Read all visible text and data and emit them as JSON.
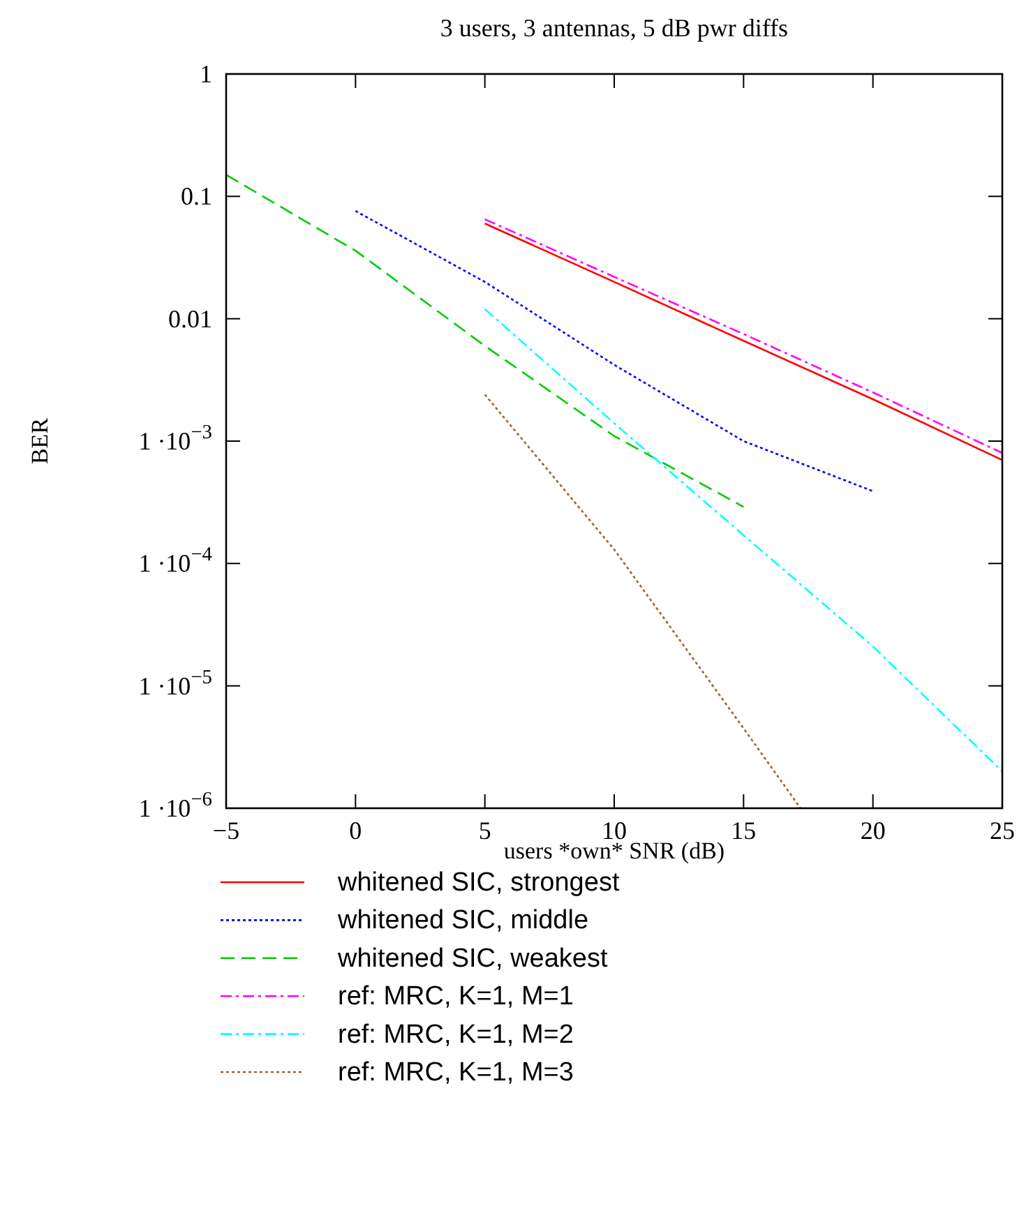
{
  "chart_data": {
    "type": "line",
    "title": "3 users, 3 antennas,  5 dB pwr diffs",
    "xlabel": "users *own* SNR  (dB)",
    "ylabel": "BER",
    "log": "y",
    "grid": false,
    "legend": "bottom",
    "xlim": [
      -5,
      25
    ],
    "xticks": [
      -5,
      0,
      5,
      10,
      15,
      20,
      25
    ],
    "ylim": [
      1e-06,
      1
    ],
    "yticks": [
      {
        "value": 1e-06,
        "label": "1 ·10$^{−6}$"
      },
      {
        "value": 1e-05,
        "label": "1 ·10$^{−5}$"
      },
      {
        "value": 0.0001,
        "label": "1 ·10$^{−4}$"
      },
      {
        "value": 0.001,
        "label": "1 ·10$^{−3}$"
      },
      {
        "value": 0.01,
        "label": "0.01"
      },
      {
        "value": 0.1,
        "label": "0.1"
      },
      {
        "value": 1,
        "label": "1"
      }
    ],
    "series": [
      {
        "name": "whitened SIC, strongest",
        "color": "#ff0000",
        "line_style": "solid",
        "x": [
          5,
          10,
          15,
          20,
          25
        ],
        "values": [
          0.06,
          0.02,
          0.0066,
          0.0022,
          0.0007
        ]
      },
      {
        "name": "whitened SIC, middle",
        "color": "#0000ff",
        "line_style": "dotted",
        "x": [
          0,
          5,
          10,
          15,
          20
        ],
        "values": [
          0.076,
          0.02,
          0.0042,
          0.001,
          0.00039
        ]
      },
      {
        "name": "whitened SIC, weakest",
        "color": "#00cc00",
        "line_style": "dashed",
        "x": [
          -5,
          0,
          5,
          10,
          15
        ],
        "values": [
          0.15,
          0.036,
          0.006,
          0.0011,
          0.00029
        ]
      },
      {
        "name": "ref: MRC, K=1, M=1",
        "color": "#ff00ff",
        "line_style": "dashdot",
        "x": [
          5,
          10,
          15,
          20,
          25
        ],
        "values": [
          0.065,
          0.022,
          0.0075,
          0.0025,
          0.0008
        ]
      },
      {
        "name": "ref: MRC, K=1, M=2",
        "color": "#00ffff",
        "line_style": "dashdot",
        "x": [
          5,
          10,
          15,
          20,
          25
        ],
        "values": [
          0.012,
          0.0014,
          0.00017,
          2.1e-05,
          2e-06
        ]
      },
      {
        "name": "ref: MRC, K=1, M=3",
        "color": "#996633",
        "line_style": "dotted",
        "x": [
          5,
          10,
          15,
          17.2
        ],
        "values": [
          0.0024,
          0.00013,
          4.5e-06,
          1e-06
        ]
      }
    ]
  }
}
